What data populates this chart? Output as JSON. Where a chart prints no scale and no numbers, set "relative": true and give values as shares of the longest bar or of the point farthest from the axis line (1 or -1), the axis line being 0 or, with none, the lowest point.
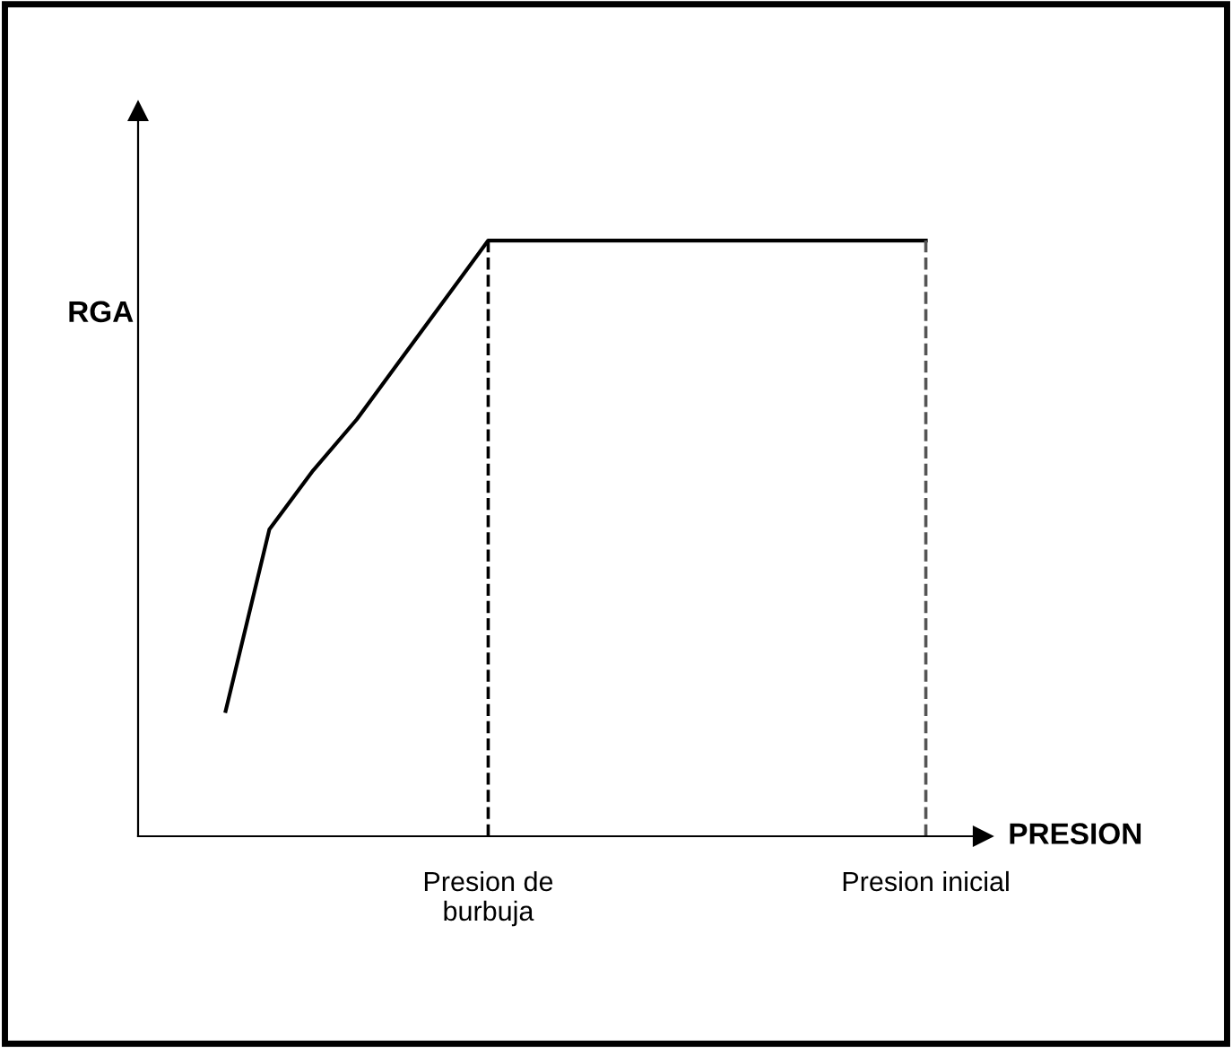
{
  "chart_data": {
    "type": "line",
    "relative": true,
    "xlabel": "PRESION",
    "ylabel": "RGA",
    "categories": [
      null,
      null,
      null,
      null,
      null,
      null,
      null,
      null,
      "Presion de\nburbuja",
      null,
      null,
      null,
      null,
      null,
      null,
      null,
      null,
      null,
      "Presion inicial",
      null
    ],
    "series": [
      {
        "color": "#000000",
        "values": [
          null,
          null,
          0.21,
          0.515,
          0.614,
          0.7,
          0.8,
          0.9,
          1,
          1,
          1,
          1,
          1,
          1,
          1,
          1,
          1,
          1,
          1,
          null
        ]
      }
    ],
    "ref_lines": [
      {
        "axis": "x",
        "value": "Presion de\nburbuja",
        "color": "#000000",
        "line_style": "dashed"
      },
      {
        "axis": "x",
        "value": "Presion inicial",
        "color": "#555555",
        "line_style": "dashed"
      }
    ],
    "grid": false,
    "legend": false,
    "marker": "none",
    "line_style": "solid"
  }
}
